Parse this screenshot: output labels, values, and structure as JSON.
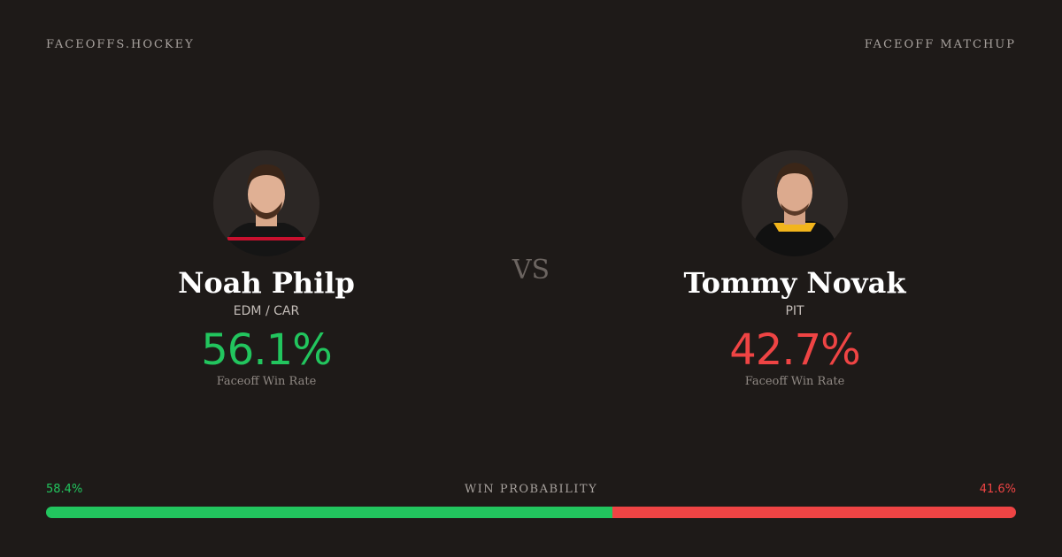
{
  "header": {
    "brand": "FACEOFFS.HOCKEY",
    "label": "FACEOFF MATCHUP"
  },
  "vs": "VS",
  "players": [
    {
      "name": "Noah Philp",
      "team": "EDM / CAR",
      "win_rate": "56.1%",
      "win_rate_label": "Faceoff Win Rate",
      "color": "#22c55e"
    },
    {
      "name": "Tommy Novak",
      "team": "PIT",
      "win_rate": "42.7%",
      "win_rate_label": "Faceoff Win Rate",
      "color": "#ef4444"
    }
  ],
  "win_probability": {
    "title": "WIN PROBABILITY",
    "values": [
      {
        "value": 58.4,
        "label": "58.4%"
      },
      {
        "value": 41.6,
        "label": "41.6%"
      }
    ]
  }
}
